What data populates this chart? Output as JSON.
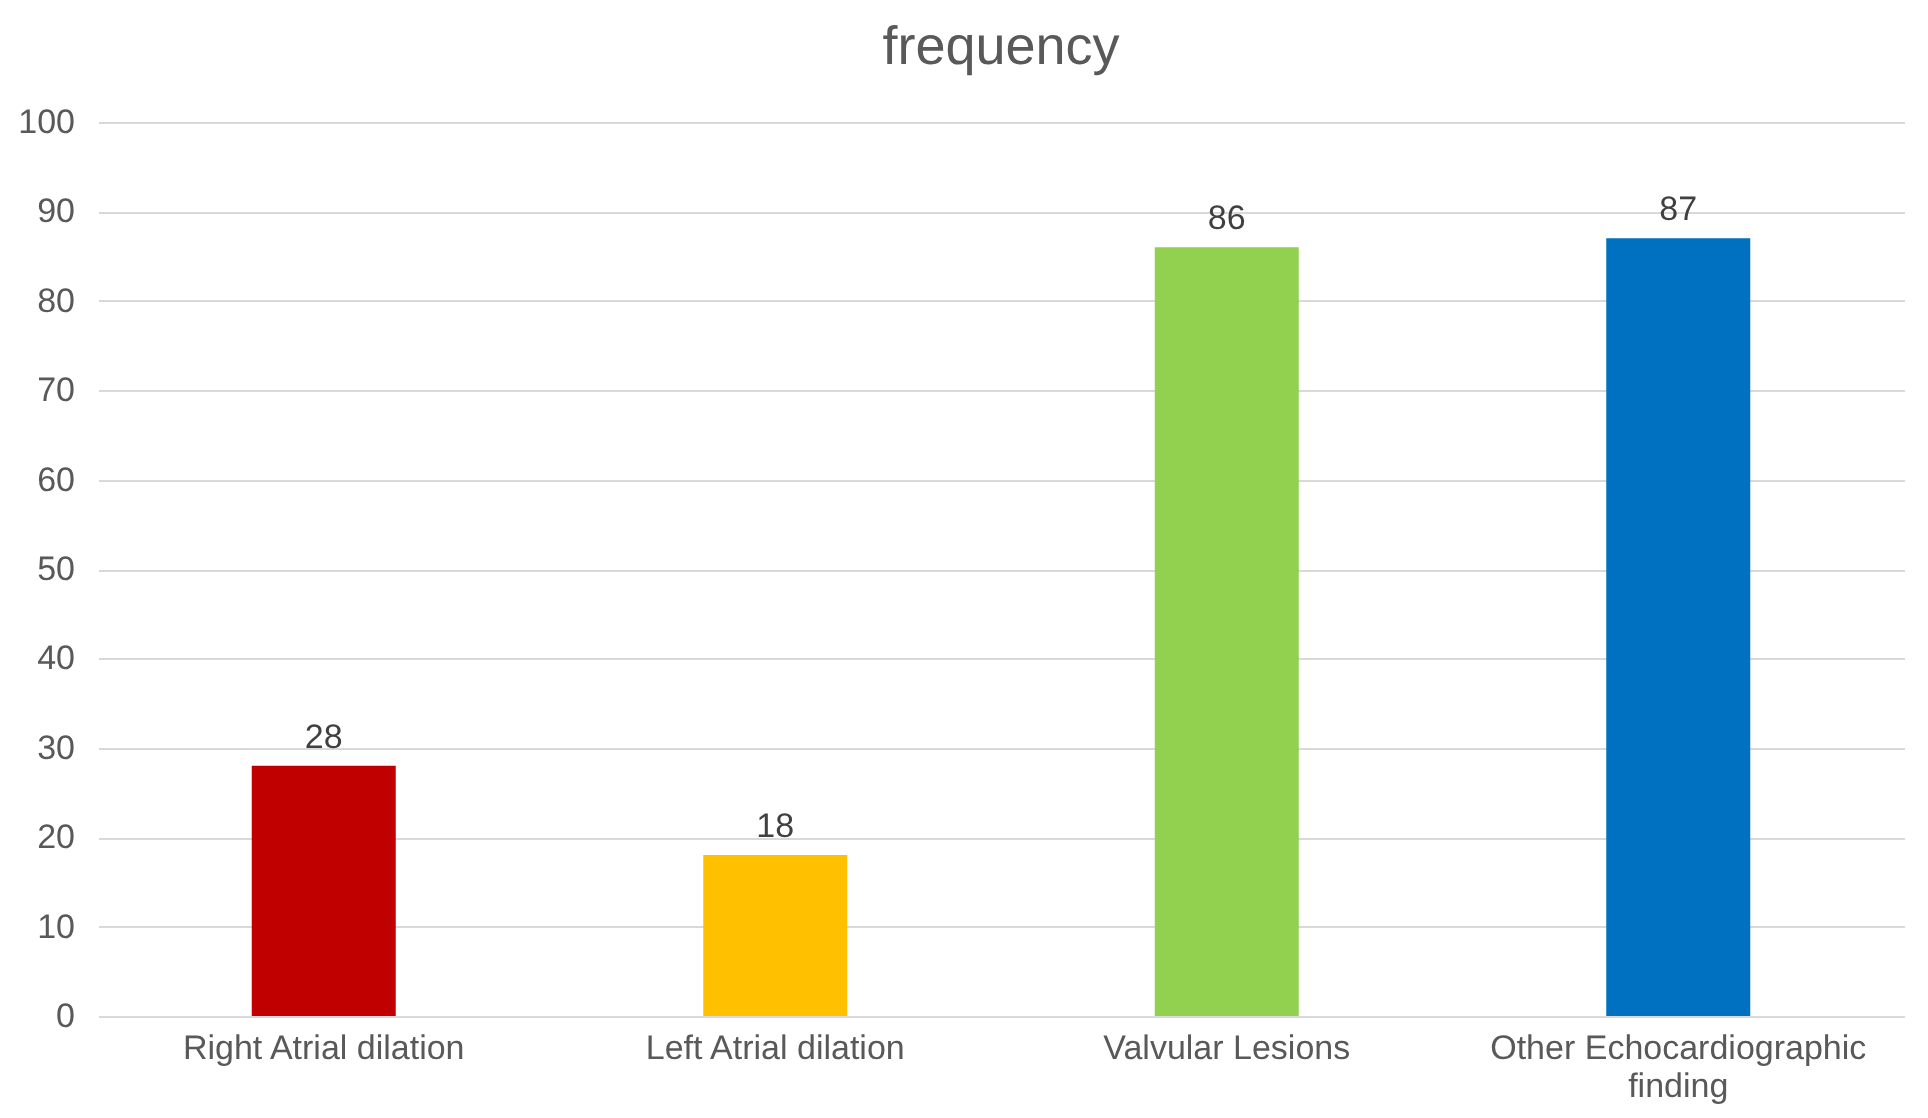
{
  "chart_data": {
    "type": "bar",
    "title": "frequency",
    "categories": [
      "Right Atrial dilation",
      "Left Atrial dilation",
      "Valvular Lesions",
      "Other Echocardiographic finding"
    ],
    "values": [
      28,
      18,
      86,
      87
    ],
    "colors": [
      "#c00000",
      "#ffc000",
      "#92d050",
      "#0070c0"
    ],
    "ylim": [
      0,
      100
    ],
    "yticks": [
      0,
      10,
      20,
      30,
      40,
      50,
      60,
      70,
      80,
      90,
      100
    ],
    "grid": "y",
    "data_labels": true
  }
}
